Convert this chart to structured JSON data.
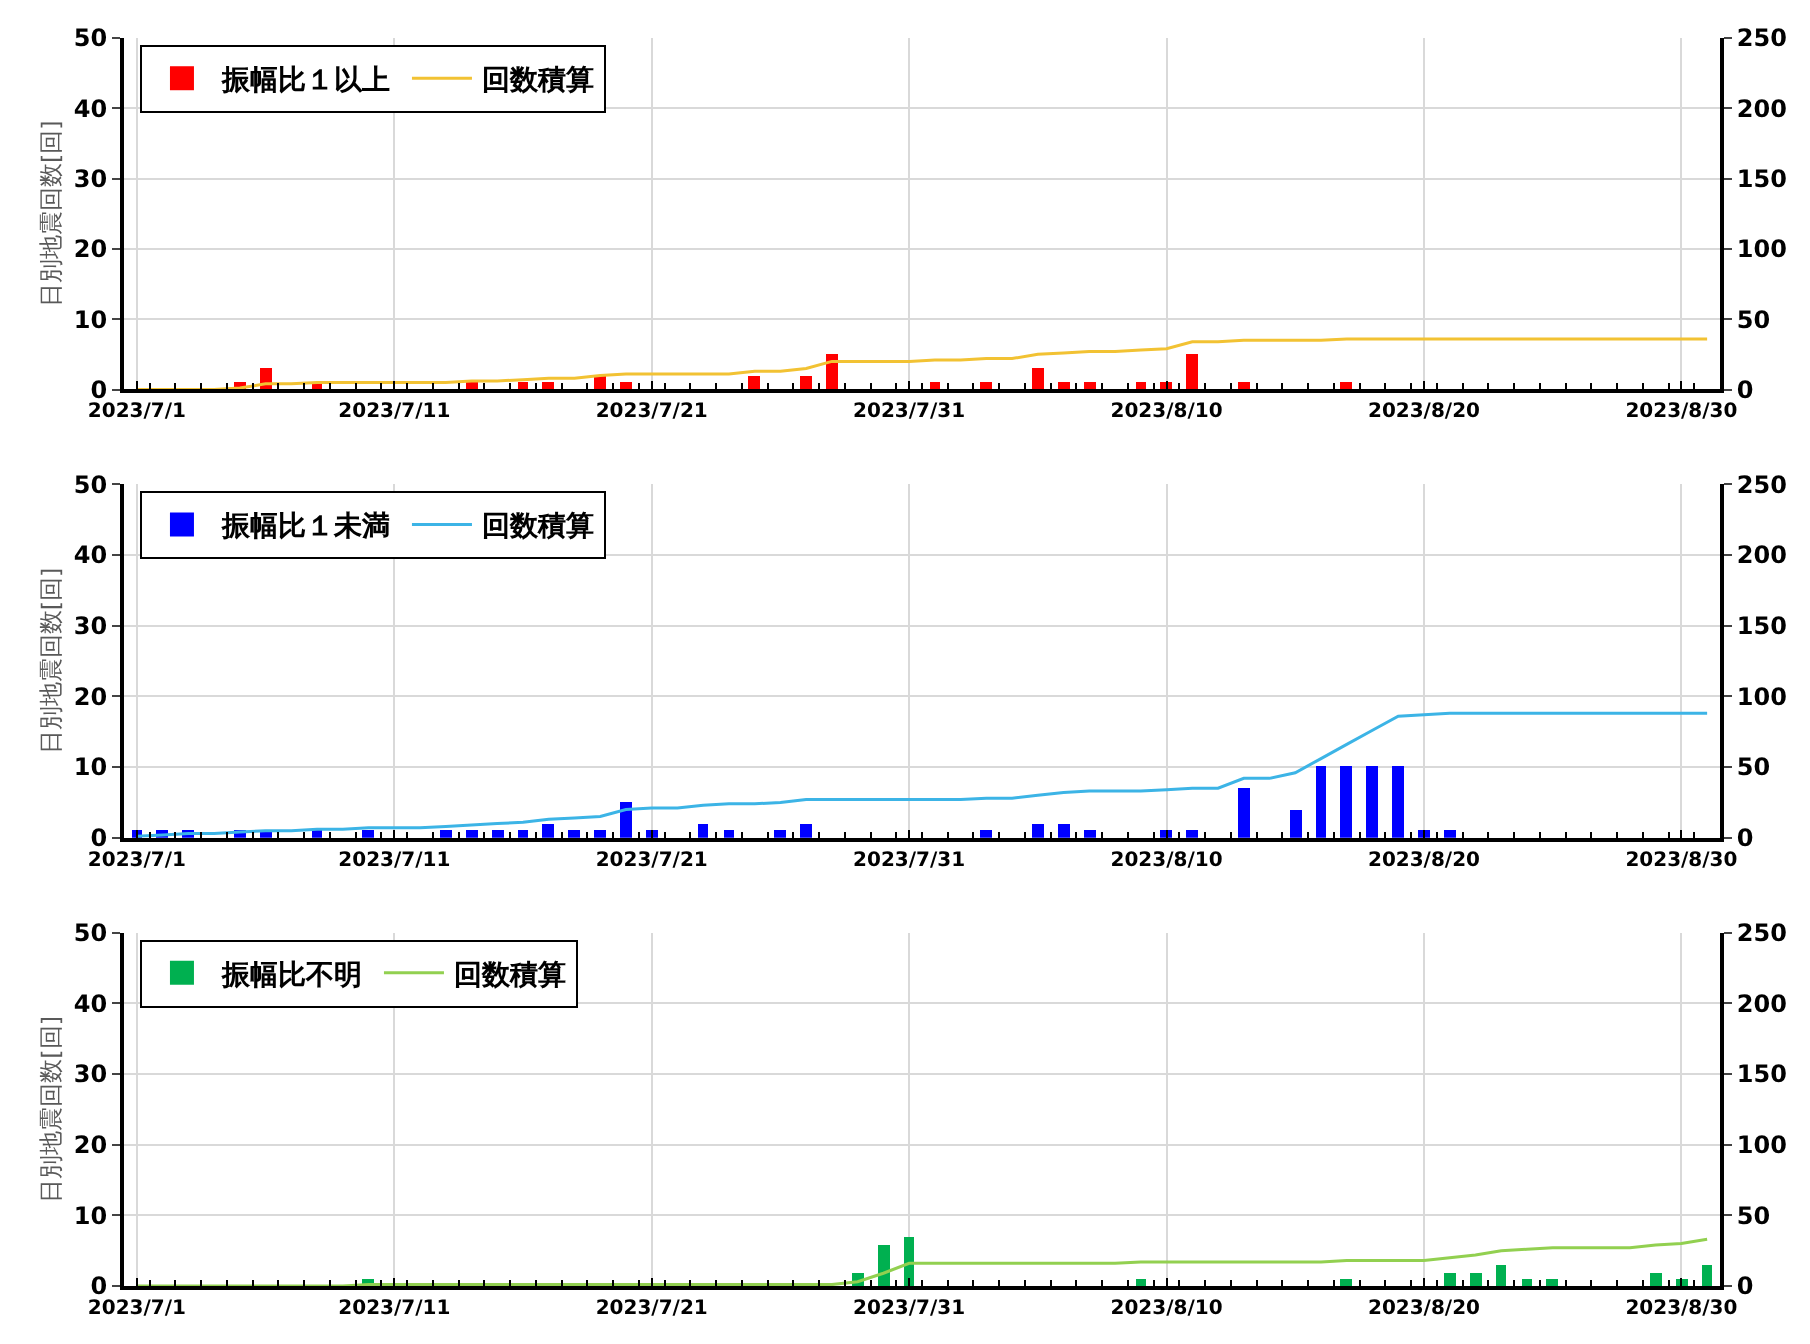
{
  "chart_data": [
    {
      "type": "bar",
      "ylabel": "日別地震回数[回]",
      "legend": "top left",
      "grid": true,
      "x": [
        "2023-07-01",
        "2023-07-02",
        "2023-07-03",
        "2023-07-04",
        "2023-07-05",
        "2023-07-06",
        "2023-07-07",
        "2023-07-08",
        "2023-07-09",
        "2023-07-10",
        "2023-07-11",
        "2023-07-12",
        "2023-07-13",
        "2023-07-14",
        "2023-07-15",
        "2023-07-16",
        "2023-07-17",
        "2023-07-18",
        "2023-07-19",
        "2023-07-20",
        "2023-07-21",
        "2023-07-22",
        "2023-07-23",
        "2023-07-24",
        "2023-07-25",
        "2023-07-26",
        "2023-07-27",
        "2023-07-28",
        "2023-07-29",
        "2023-07-30",
        "2023-07-31",
        "2023-08-01",
        "2023-08-02",
        "2023-08-03",
        "2023-08-04",
        "2023-08-05",
        "2023-08-06",
        "2023-08-07",
        "2023-08-08",
        "2023-08-09",
        "2023-08-10",
        "2023-08-11",
        "2023-08-12",
        "2023-08-13",
        "2023-08-14",
        "2023-08-15",
        "2023-08-16",
        "2023-08-17",
        "2023-08-18",
        "2023-08-19",
        "2023-08-20",
        "2023-08-21",
        "2023-08-22",
        "2023-08-23",
        "2023-08-24",
        "2023-08-25",
        "2023-08-26",
        "2023-08-27",
        "2023-08-28",
        "2023-08-29",
        "2023-08-30",
        "2023-08-31"
      ],
      "xlim": [
        "2023-06-30T12:00",
        "2023-08-31T12:00"
      ],
      "xticks": [
        {
          "value": "2023-07-01",
          "label": "2023/7/1"
        },
        {
          "value": "2023-07-11",
          "label": "2023/7/11"
        },
        {
          "value": "2023-07-21",
          "label": "2023/7/21"
        },
        {
          "value": "2023-07-31",
          "label": "2023/7/31"
        },
        {
          "value": "2023-08-10",
          "label": "2023/8/10"
        },
        {
          "value": "2023-08-20",
          "label": "2023/8/20"
        },
        {
          "value": "2023-08-30",
          "label": "2023/8/30"
        }
      ],
      "ylim": [
        0,
        50
      ],
      "yticks": [
        0,
        10,
        20,
        30,
        40,
        50
      ],
      "y2lim": [
        0,
        250
      ],
      "y2ticks": [
        0,
        50,
        100,
        150,
        200,
        250
      ],
      "series": [
        {
          "name": "振幅比１以上",
          "color": "#ff0000",
          "values": [
            0,
            0,
            0,
            0,
            1,
            3,
            0,
            1,
            0,
            0,
            0,
            0,
            0,
            1,
            0,
            1,
            1,
            0,
            2,
            1,
            0,
            0,
            0,
            0,
            2,
            0,
            2,
            5,
            0,
            0,
            0,
            1,
            0,
            1,
            0,
            3,
            1,
            1,
            0,
            1,
            1,
            5,
            0,
            1,
            0,
            0,
            0,
            1,
            0,
            0,
            0,
            0,
            0,
            0,
            0,
            0,
            0,
            0,
            0,
            0,
            0,
            0
          ]
        },
        {
          "name": "回数積算",
          "type": "line",
          "axis": "y2",
          "color": "#f2c233",
          "values": [
            0,
            0,
            0,
            0,
            1,
            4,
            4,
            5,
            5,
            5,
            5,
            5,
            5,
            6,
            6,
            7,
            8,
            8,
            10,
            11,
            11,
            11,
            11,
            11,
            13,
            13,
            15,
            20,
            20,
            20,
            20,
            21,
            21,
            22,
            22,
            25,
            26,
            27,
            27,
            28,
            29,
            34,
            34,
            35,
            35,
            35,
            35,
            36,
            36,
            36,
            36,
            36,
            36,
            36,
            36,
            36,
            36,
            36,
            36,
            36,
            36,
            36
          ]
        }
      ]
    },
    {
      "type": "bar",
      "ylabel": "日別地震回数[回]",
      "legend": "top left",
      "grid": true,
      "x": [
        "2023-07-01",
        "2023-07-02",
        "2023-07-03",
        "2023-07-04",
        "2023-07-05",
        "2023-07-06",
        "2023-07-07",
        "2023-07-08",
        "2023-07-09",
        "2023-07-10",
        "2023-07-11",
        "2023-07-12",
        "2023-07-13",
        "2023-07-14",
        "2023-07-15",
        "2023-07-16",
        "2023-07-17",
        "2023-07-18",
        "2023-07-19",
        "2023-07-20",
        "2023-07-21",
        "2023-07-22",
        "2023-07-23",
        "2023-07-24",
        "2023-07-25",
        "2023-07-26",
        "2023-07-27",
        "2023-07-28",
        "2023-07-29",
        "2023-07-30",
        "2023-07-31",
        "2023-08-01",
        "2023-08-02",
        "2023-08-03",
        "2023-08-04",
        "2023-08-05",
        "2023-08-06",
        "2023-08-07",
        "2023-08-08",
        "2023-08-09",
        "2023-08-10",
        "2023-08-11",
        "2023-08-12",
        "2023-08-13",
        "2023-08-14",
        "2023-08-15",
        "2023-08-16",
        "2023-08-17",
        "2023-08-18",
        "2023-08-19",
        "2023-08-20",
        "2023-08-21",
        "2023-08-22",
        "2023-08-23",
        "2023-08-24",
        "2023-08-25",
        "2023-08-26",
        "2023-08-27",
        "2023-08-28",
        "2023-08-29",
        "2023-08-30",
        "2023-08-31"
      ],
      "xlim": [
        "2023-06-30T12:00",
        "2023-08-31T12:00"
      ],
      "xticks": [
        {
          "value": "2023-07-01",
          "label": "2023/7/1"
        },
        {
          "value": "2023-07-11",
          "label": "2023/7/11"
        },
        {
          "value": "2023-07-21",
          "label": "2023/7/21"
        },
        {
          "value": "2023-07-31",
          "label": "2023/7/31"
        },
        {
          "value": "2023-08-10",
          "label": "2023/8/10"
        },
        {
          "value": "2023-08-20",
          "label": "2023/8/20"
        },
        {
          "value": "2023-08-30",
          "label": "2023/8/30"
        }
      ],
      "ylim": [
        0,
        50
      ],
      "yticks": [
        0,
        10,
        20,
        30,
        40,
        50
      ],
      "y2lim": [
        0,
        250
      ],
      "y2ticks": [
        0,
        50,
        100,
        150,
        200,
        250
      ],
      "series": [
        {
          "name": "振幅比１未満",
          "color": "#0000ff",
          "values": [
            1,
            1,
            1,
            0,
            1,
            1,
            0,
            1,
            0,
            1,
            0,
            0,
            1,
            1,
            1,
            1,
            2,
            1,
            1,
            5,
            1,
            0,
            2,
            1,
            0,
            1,
            2,
            0,
            0,
            0,
            0,
            0,
            0,
            1,
            0,
            2,
            2,
            1,
            0,
            0,
            1,
            1,
            0,
            7,
            0,
            4,
            10,
            10,
            10,
            10,
            1,
            1,
            0,
            0,
            0,
            0,
            0,
            0,
            0,
            0,
            0,
            0
          ]
        },
        {
          "name": "回数積算",
          "type": "line",
          "axis": "y2",
          "color": "#3cb4e6",
          "values": [
            1,
            2,
            3,
            3,
            4,
            5,
            5,
            6,
            6,
            7,
            7,
            7,
            8,
            9,
            10,
            11,
            13,
            14,
            15,
            20,
            21,
            21,
            23,
            24,
            24,
            25,
            27,
            27,
            27,
            27,
            27,
            27,
            27,
            28,
            28,
            30,
            32,
            33,
            33,
            33,
            34,
            35,
            35,
            42,
            42,
            46,
            56,
            66,
            76,
            86,
            87,
            88,
            88,
            88,
            88,
            88,
            88,
            88,
            88,
            88,
            88,
            88
          ]
        }
      ]
    },
    {
      "type": "bar",
      "ylabel": "日別地震回数[回]",
      "legend": "top left",
      "grid": true,
      "x": [
        "2023-07-01",
        "2023-07-02",
        "2023-07-03",
        "2023-07-04",
        "2023-07-05",
        "2023-07-06",
        "2023-07-07",
        "2023-07-08",
        "2023-07-09",
        "2023-07-10",
        "2023-07-11",
        "2023-07-12",
        "2023-07-13",
        "2023-07-14",
        "2023-07-15",
        "2023-07-16",
        "2023-07-17",
        "2023-07-18",
        "2023-07-19",
        "2023-07-20",
        "2023-07-21",
        "2023-07-22",
        "2023-07-23",
        "2023-07-24",
        "2023-07-25",
        "2023-07-26",
        "2023-07-27",
        "2023-07-28",
        "2023-07-29",
        "2023-07-30",
        "2023-07-31",
        "2023-08-01",
        "2023-08-02",
        "2023-08-03",
        "2023-08-04",
        "2023-08-05",
        "2023-08-06",
        "2023-08-07",
        "2023-08-08",
        "2023-08-09",
        "2023-08-10",
        "2023-08-11",
        "2023-08-12",
        "2023-08-13",
        "2023-08-14",
        "2023-08-15",
        "2023-08-16",
        "2023-08-17",
        "2023-08-18",
        "2023-08-19",
        "2023-08-20",
        "2023-08-21",
        "2023-08-22",
        "2023-08-23",
        "2023-08-24",
        "2023-08-25",
        "2023-08-26",
        "2023-08-27",
        "2023-08-28",
        "2023-08-29",
        "2023-08-30",
        "2023-08-31"
      ],
      "xlim": [
        "2023-06-30T12:00",
        "2023-08-31T12:00"
      ],
      "xticks": [
        {
          "value": "2023-07-01",
          "label": "2023/7/1"
        },
        {
          "value": "2023-07-11",
          "label": "2023/7/11"
        },
        {
          "value": "2023-07-21",
          "label": "2023/7/21"
        },
        {
          "value": "2023-07-31",
          "label": "2023/7/31"
        },
        {
          "value": "2023-08-10",
          "label": "2023/8/10"
        },
        {
          "value": "2023-08-20",
          "label": "2023/8/20"
        },
        {
          "value": "2023-08-30",
          "label": "2023/8/30"
        }
      ],
      "ylim": [
        0,
        50
      ],
      "yticks": [
        0,
        10,
        20,
        30,
        40,
        50
      ],
      "y2lim": [
        0,
        250
      ],
      "y2ticks": [
        0,
        50,
        100,
        150,
        200,
        250
      ],
      "series": [
        {
          "name": "振幅比不明",
          "color": "#00b050",
          "values": [
            0,
            0,
            0,
            0,
            0,
            0,
            0,
            0,
            0,
            1,
            0,
            0,
            0,
            0,
            0,
            0,
            0,
            0,
            0,
            0,
            0,
            0,
            0,
            0,
            0,
            0,
            0,
            0,
            2,
            6,
            7,
            0,
            0,
            0,
            0,
            0,
            0,
            0,
            0,
            1,
            0,
            0,
            0,
            0,
            0,
            0,
            0,
            1,
            0,
            0,
            0,
            2,
            2,
            3,
            1,
            1,
            0,
            0,
            0,
            2,
            1,
            3
          ]
        },
        {
          "name": "回数積算",
          "type": "line",
          "axis": "y2",
          "color": "#92d050",
          "values": [
            0,
            0,
            0,
            0,
            0,
            0,
            0,
            0,
            0,
            1,
            1,
            1,
            1,
            1,
            1,
            1,
            1,
            1,
            1,
            1,
            1,
            1,
            1,
            1,
            1,
            1,
            1,
            1,
            3,
            9,
            16,
            16,
            16,
            16,
            16,
            16,
            16,
            16,
            16,
            17,
            17,
            17,
            17,
            17,
            17,
            17,
            17,
            18,
            18,
            18,
            18,
            20,
            22,
            25,
            26,
            27,
            27,
            27,
            27,
            29,
            30,
            33
          ]
        }
      ]
    }
  ]
}
